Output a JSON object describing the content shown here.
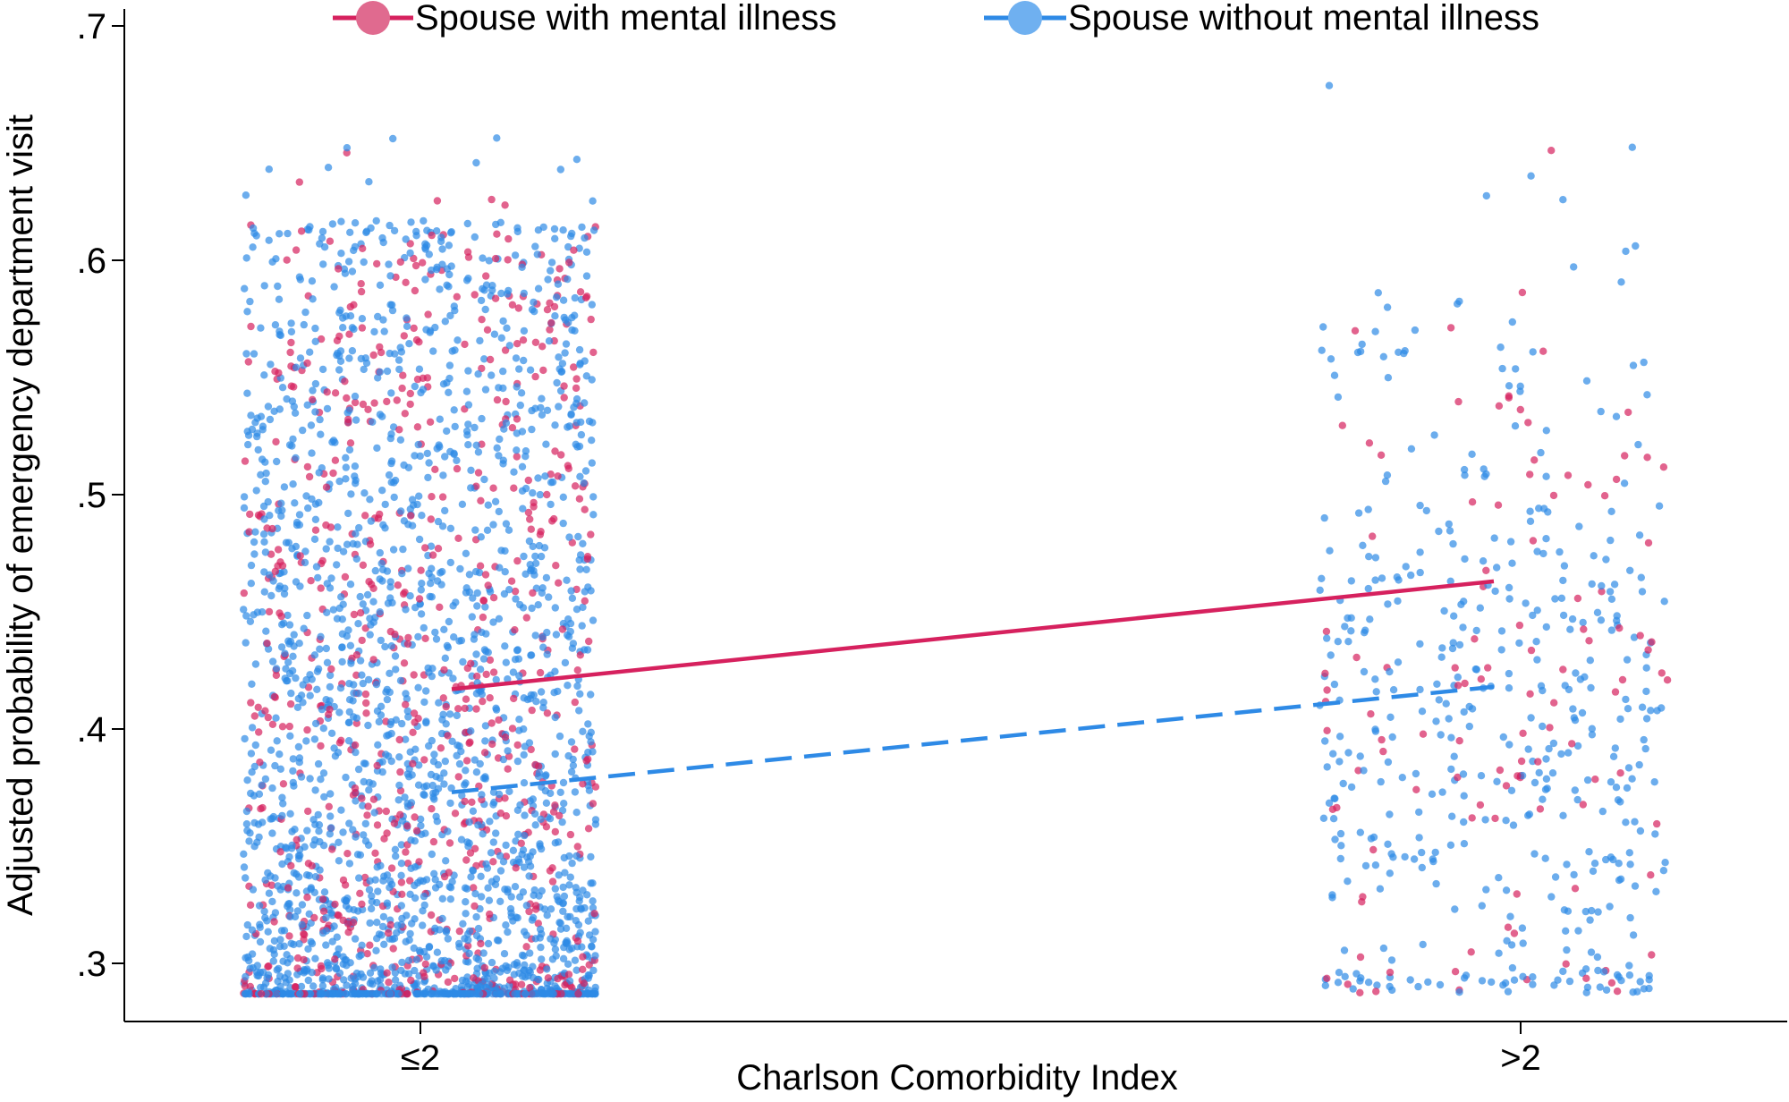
{
  "chart_data": {
    "type": "scatter",
    "title": "",
    "xlabel": "Charlson Comorbidity Index",
    "ylabel": "Adjusted probability of emergency department visit",
    "categories": [
      "≤2",
      ">2"
    ],
    "ylim": [
      0.285,
      0.705
    ],
    "yticks": [
      {
        "value": 0.3,
        "label": ".3"
      },
      {
        "value": 0.4,
        "label": ".4"
      },
      {
        "value": 0.5,
        "label": ".5"
      },
      {
        "value": 0.6,
        "label": ".6"
      },
      {
        "value": 0.7,
        "label": ".7"
      }
    ],
    "grid": false,
    "legend_position": "top",
    "series": [
      {
        "name": "Spouse with mental illness",
        "color": "#d6215e",
        "line_style": "solid",
        "fitted": [
          0.417,
          0.463
        ]
      },
      {
        "name": "Spouse without mental illness",
        "color": "#2e8ae6",
        "line_style": "dashed",
        "fitted": [
          0.373,
          0.418
        ]
      }
    ],
    "scatter_summary": [
      {
        "category": "≤2",
        "spouse_with_mental_illness": {
          "min": 0.287,
          "max": 0.657
        },
        "spouse_without_mental_illness": {
          "min": 0.287,
          "max": 0.622
        }
      },
      {
        "category": ">2",
        "spouse_with_mental_illness": {
          "min": 0.33,
          "max": 0.693
        },
        "spouse_without_mental_illness": {
          "min": 0.287,
          "max": 0.645
        }
      }
    ]
  }
}
